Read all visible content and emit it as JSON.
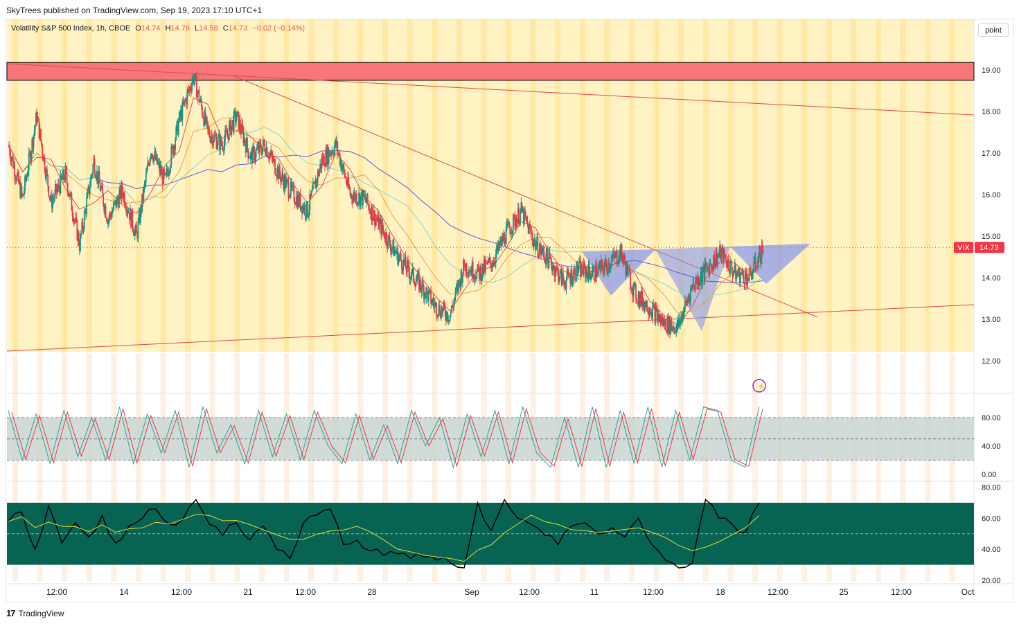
{
  "header": {
    "published": "SkyTrees published on TradingView.com, Sep 19, 2023 17:10 UTC+1"
  },
  "legend": {
    "title": "Volatility S&P 500 Index, 1h, CBOE",
    "o_label": "O",
    "o": "14.74",
    "h_label": "H",
    "h": "14.76",
    "l_label": "L",
    "l": "14.58",
    "c_label": "C",
    "c": "14.73",
    "change": "−0.02 (−0.14%)"
  },
  "toolbar": {
    "point_label": "point"
  },
  "price_badge": {
    "symbol": "VIX",
    "value": "14.73"
  },
  "footer": {
    "brand": "TradingView"
  },
  "colors": {
    "up": "#089981",
    "down": "#f23645",
    "zone": "#f6767a",
    "session_bg": "#fff3c4",
    "session_bar": "#ffe08a",
    "stoch_band": "#c9d5d0",
    "rsi_band": "#076352",
    "ma_blue": "#5b5bd6",
    "ma_teal": "#7fd8c8"
  },
  "chart_data": [
    {
      "type": "candlestick",
      "symbol": "VIX",
      "ylim": [
        11.5,
        19.4
      ],
      "y_ticks": [
        "19.00",
        "18.00",
        "17.00",
        "16.00",
        "15.00",
        "14.00",
        "13.00",
        "12.00"
      ],
      "x_ticks": [
        "12:00",
        "14",
        "12:00",
        "21",
        "12:00",
        "28",
        "Sep",
        "12:00",
        "11",
        "12:00",
        "18",
        "12:00",
        "25",
        "12:00",
        "Oct"
      ],
      "last_price": 14.73,
      "resistance_zone": [
        18.75,
        19.18
      ],
      "approx_close_path": [
        {
          "x": "Aug 10",
          "y": 17.2
        },
        {
          "x": "Aug 11",
          "y": 15.9
        },
        {
          "x": "Aug 11",
          "y": 17.9
        },
        {
          "x": "Aug 14",
          "y": 15.8
        },
        {
          "x": "Aug 14",
          "y": 16.5
        },
        {
          "x": "Aug 15",
          "y": 14.8
        },
        {
          "x": "Aug 15",
          "y": 16.8
        },
        {
          "x": "Aug 16",
          "y": 15.4
        },
        {
          "x": "Aug 17",
          "y": 16.1
        },
        {
          "x": "Aug 17",
          "y": 15.0
        },
        {
          "x": "Aug 18",
          "y": 17.1
        },
        {
          "x": "Aug 18",
          "y": 16.3
        },
        {
          "x": "Aug 21",
          "y": 17.8
        },
        {
          "x": "Aug 21",
          "y": 18.85
        },
        {
          "x": "Aug 22",
          "y": 17.5
        },
        {
          "x": "Aug 22",
          "y": 17.2
        },
        {
          "x": "Aug 23",
          "y": 17.9
        },
        {
          "x": "Aug 23",
          "y": 16.9
        },
        {
          "x": "Aug 24",
          "y": 17.2
        },
        {
          "x": "Aug 24",
          "y": 16.5
        },
        {
          "x": "Aug 25",
          "y": 16.0
        },
        {
          "x": "Aug 25",
          "y": 15.6
        },
        {
          "x": "Aug 28",
          "y": 16.8
        },
        {
          "x": "Aug 28",
          "y": 17.2
        },
        {
          "x": "Aug 29",
          "y": 16.0
        },
        {
          "x": "Aug 29",
          "y": 15.9
        },
        {
          "x": "Aug 30",
          "y": 15.3
        },
        {
          "x": "Aug 30",
          "y": 14.7
        },
        {
          "x": "Aug 31",
          "y": 14.2
        },
        {
          "x": "Aug 31",
          "y": 13.8
        },
        {
          "x": "Sep 1",
          "y": 13.3
        },
        {
          "x": "Sep 1",
          "y": 13.1
        },
        {
          "x": "Sep 5",
          "y": 14.3
        },
        {
          "x": "Sep 5",
          "y": 14.1
        },
        {
          "x": "Sep 6",
          "y": 14.4
        },
        {
          "x": "Sep 6",
          "y": 15.1
        },
        {
          "x": "Sep 7",
          "y": 15.6
        },
        {
          "x": "Sep 7",
          "y": 14.8
        },
        {
          "x": "Sep 8",
          "y": 14.4
        },
        {
          "x": "Sep 8",
          "y": 13.9
        },
        {
          "x": "Sep 11",
          "y": 14.2
        },
        {
          "x": "Sep 11",
          "y": 14.1
        },
        {
          "x": "Sep 12",
          "y": 14.3
        },
        {
          "x": "Sep 12",
          "y": 14.6
        },
        {
          "x": "Sep 13",
          "y": 13.6
        },
        {
          "x": "Sep 13",
          "y": 13.3
        },
        {
          "x": "Sep 14",
          "y": 12.9
        },
        {
          "x": "Sep 14",
          "y": 12.8
        },
        {
          "x": "Sep 15",
          "y": 13.8
        },
        {
          "x": "Sep 15",
          "y": 14.2
        },
        {
          "x": "Sep 18",
          "y": 14.6
        },
        {
          "x": "Sep 18",
          "y": 14.1
        },
        {
          "x": "Sep 19",
          "y": 14.0
        },
        {
          "x": "Sep 19",
          "y": 14.73
        }
      ]
    },
    {
      "type": "line",
      "name": "stochastic",
      "ylim": [
        0,
        100
      ],
      "y_ticks": [
        "80.00",
        "40.00",
        "0.00"
      ],
      "band": [
        20,
        80
      ],
      "approx_values": [
        90,
        20,
        85,
        15,
        90,
        25,
        80,
        20,
        95,
        15,
        85,
        30,
        90,
        10,
        95,
        30,
        70,
        15,
        90,
        25,
        85,
        20,
        90,
        40,
        15,
        85,
        20,
        70,
        15,
        90,
        40,
        80,
        10,
        85,
        25,
        90,
        15,
        95,
        30,
        10,
        80,
        10,
        95,
        10,
        90,
        15,
        95,
        10,
        90,
        20,
        95,
        90,
        20,
        10,
        95
      ]
    },
    {
      "type": "line",
      "name": "rsi",
      "ylim": [
        20,
        80
      ],
      "y_ticks": [
        "80.00",
        "60.00",
        "40.00",
        "20.00"
      ],
      "band": [
        30,
        70
      ],
      "approx_values": [
        58,
        64,
        40,
        68,
        44,
        57,
        48,
        62,
        44,
        55,
        60,
        66,
        56,
        59,
        72,
        56,
        49,
        57,
        46,
        55,
        40,
        34,
        57,
        62,
        66,
        43,
        46,
        39,
        36,
        37,
        34,
        35,
        33,
        31,
        28,
        70,
        52,
        72,
        60,
        56,
        49,
        43,
        55,
        57,
        50,
        54,
        48,
        60,
        43,
        33,
        28,
        31,
        72,
        60,
        56,
        51,
        70
      ]
    }
  ]
}
